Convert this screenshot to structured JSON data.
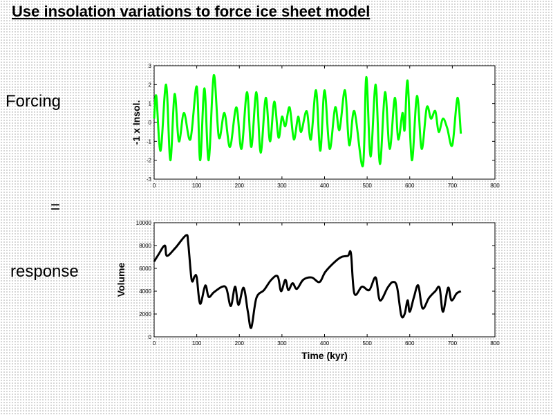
{
  "title": "Use insolation variations to force ice sheet model",
  "labels": {
    "forcing": "Forcing",
    "equals": "=",
    "response": "response"
  },
  "chart_data": [
    {
      "type": "line",
      "ylabel": "-1 x Insol.",
      "color": "#00ff00",
      "x": [
        0,
        5,
        15,
        28,
        38,
        48,
        58,
        70,
        85,
        100,
        108,
        118,
        128,
        140,
        152,
        165,
        178,
        193,
        205,
        218,
        228,
        240,
        250,
        262,
        272,
        282,
        292,
        300,
        308,
        318,
        328,
        338,
        345,
        358,
        368,
        380,
        390,
        400,
        412,
        425,
        435,
        448,
        458,
        470,
        490,
        498,
        508,
        520,
        530,
        542,
        553,
        565,
        573,
        583,
        588,
        595,
        605,
        617,
        628,
        640,
        650,
        660,
        668,
        678,
        688,
        700,
        712,
        720
      ],
      "values": [
        0.2,
        1.4,
        -1.5,
        2.0,
        -2.0,
        1.5,
        -1.0,
        0.5,
        -0.9,
        1.9,
        -2.0,
        1.8,
        -2.0,
        2.5,
        -0.8,
        0.5,
        -1.3,
        0.8,
        -1.4,
        1.6,
        -1.3,
        1.6,
        -1.6,
        1.3,
        -1.0,
        1.1,
        -0.8,
        0.3,
        -0.2,
        0.8,
        -0.9,
        0.3,
        -0.5,
        0.6,
        -0.9,
        1.7,
        -1.5,
        1.7,
        -1.4,
        0.8,
        -0.4,
        1.7,
        -1.2,
        0.6,
        -2.3,
        2.4,
        -1.8,
        2.0,
        -2.2,
        1.6,
        -1.4,
        1.3,
        -0.9,
        0.5,
        -0.4,
        2.2,
        -2.0,
        1.4,
        -1.4,
        0.8,
        0.2,
        0.6,
        -0.5,
        0.2,
        -0.3,
        -1.2,
        1.3,
        -0.6
      ],
      "xlim": [
        0,
        800
      ],
      "xticks": [
        0,
        100,
        200,
        300,
        400,
        500,
        600,
        700,
        800
      ],
      "ylim": [
        -3,
        3
      ],
      "yticks": [
        -3,
        -2,
        -1,
        0,
        1,
        2,
        3
      ]
    },
    {
      "type": "line",
      "ylabel": "Volume",
      "xlabel": "Time (kyr)",
      "color": "#000000",
      "x": [
        0,
        10,
        25,
        30,
        50,
        75,
        80,
        88,
        95,
        100,
        108,
        120,
        128,
        140,
        160,
        170,
        180,
        190,
        198,
        210,
        220,
        228,
        240,
        258,
        275,
        290,
        298,
        308,
        315,
        325,
        335,
        350,
        370,
        388,
        402,
        425,
        440,
        455,
        462,
        470,
        488,
        505,
        520,
        530,
        548,
        560,
        570,
        580,
        588,
        595,
        600,
        610,
        620,
        630,
        645,
        660,
        670,
        678,
        690,
        698,
        710,
        720
      ],
      "values": [
        6600,
        7200,
        8000,
        7100,
        7800,
        8900,
        8200,
        5000,
        5300,
        5200,
        2900,
        4500,
        3500,
        3900,
        4400,
        4200,
        2700,
        4400,
        2800,
        4300,
        2200,
        800,
        3400,
        4100,
        5000,
        5300,
        4000,
        5000,
        4100,
        4700,
        4200,
        5000,
        5200,
        4800,
        5700,
        6600,
        7000,
        7100,
        7300,
        3800,
        4400,
        4100,
        5200,
        3200,
        4300,
        4800,
        4400,
        1900,
        2000,
        3200,
        2200,
        3500,
        4500,
        2500,
        3400,
        4000,
        4300,
        2200,
        4300,
        3200,
        3800,
        4000
      ],
      "xlim": [
        0,
        800
      ],
      "xticks": [
        0,
        100,
        200,
        300,
        400,
        500,
        600,
        700,
        800
      ],
      "ylim": [
        0,
        10000
      ],
      "yticks": [
        0,
        2000,
        4000,
        6000,
        8000,
        10000
      ]
    }
  ]
}
